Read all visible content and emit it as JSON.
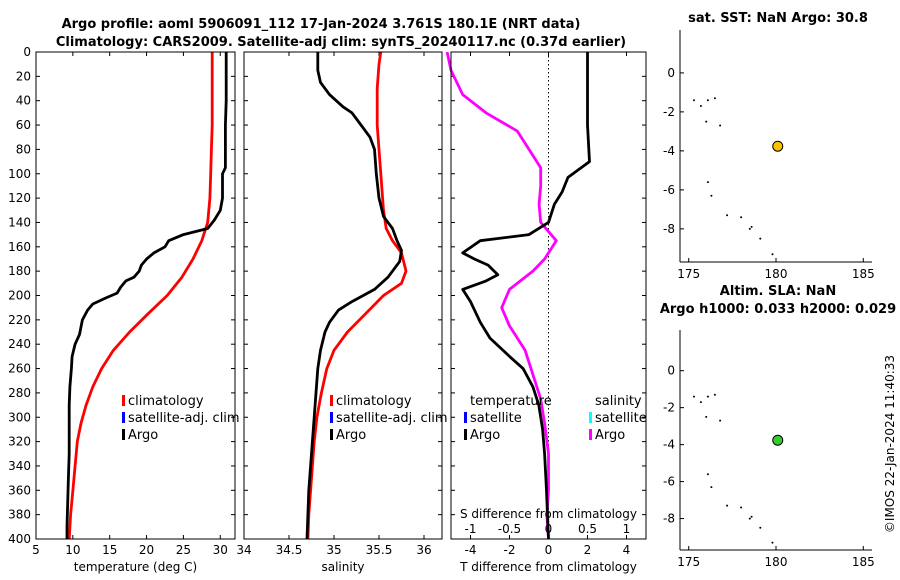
{
  "header": {
    "title_line1": "Argo profile: aoml 5906091_112 17-Jan-2024 3.761S 180.1E (NRT data)",
    "title_line2": "Climatology: CARS2009. Satellite-adj clim: synTS_20240117.nc (0.37d earlier)"
  },
  "footer": {
    "stamp": "©IMOS 22-Jan-2024 11:40:33"
  },
  "colors": {
    "climatology": "#ff0000",
    "satellite": "#0000ff",
    "argo": "#000000",
    "sal_diff": "#ff00ff",
    "sat_cyan": "#00ffff",
    "marker_sst": "#ffc000",
    "marker_sla": "#33cc33"
  },
  "chart_data": [
    {
      "id": "temperature",
      "type": "line",
      "xlabel": "temperature (deg C)",
      "xlim": [
        5,
        32
      ],
      "xticks": [
        5,
        10,
        15,
        20,
        25,
        30
      ],
      "ylim": [
        0,
        400
      ],
      "yticks": [
        0,
        20,
        40,
        60,
        80,
        100,
        120,
        140,
        160,
        180,
        200,
        220,
        240,
        260,
        280,
        300,
        320,
        340,
        360,
        380,
        400
      ],
      "legend": [
        "climatology",
        "satellite-adj. clim",
        "Argo"
      ],
      "series": [
        {
          "name": "climatology",
          "color": "#ff0000",
          "points": [
            [
              28.9,
              0
            ],
            [
              28.9,
              20
            ],
            [
              28.9,
              40
            ],
            [
              28.9,
              60
            ],
            [
              28.8,
              80
            ],
            [
              28.7,
              100
            ],
            [
              28.6,
              120
            ],
            [
              28.3,
              140
            ],
            [
              27.5,
              155
            ],
            [
              26.3,
              170
            ],
            [
              24.8,
              185
            ],
            [
              22.8,
              200
            ],
            [
              20.2,
              215
            ],
            [
              17.7,
              230
            ],
            [
              15.5,
              245
            ],
            [
              13.9,
              260
            ],
            [
              12.7,
              275
            ],
            [
              11.8,
              290
            ],
            [
              11.1,
              305
            ],
            [
              10.6,
              320
            ],
            [
              10.3,
              340
            ],
            [
              10.0,
              360
            ],
            [
              9.7,
              380
            ],
            [
              9.5,
              400
            ]
          ]
        },
        {
          "name": "Argo",
          "color": "#000000",
          "points": [
            [
              30.8,
              0
            ],
            [
              30.8,
              20
            ],
            [
              30.8,
              40
            ],
            [
              30.7,
              60
            ],
            [
              30.7,
              80
            ],
            [
              30.7,
              95
            ],
            [
              30.3,
              100
            ],
            [
              30.3,
              120
            ],
            [
              30.0,
              130
            ],
            [
              29.2,
              138
            ],
            [
              28.3,
              145
            ],
            [
              25.0,
              150
            ],
            [
              23.0,
              155
            ],
            [
              22.5,
              160
            ],
            [
              21.0,
              165
            ],
            [
              20.0,
              170
            ],
            [
              19.3,
              175
            ],
            [
              19.0,
              180
            ],
            [
              18.3,
              185
            ],
            [
              17.2,
              188
            ],
            [
              16.5,
              193
            ],
            [
              16.0,
              198
            ],
            [
              14.5,
              202
            ],
            [
              12.7,
              207
            ],
            [
              12.0,
              212
            ],
            [
              11.3,
              220
            ],
            [
              10.9,
              232
            ],
            [
              10.3,
              240
            ],
            [
              9.9,
              250
            ],
            [
              9.8,
              260
            ],
            [
              9.6,
              275
            ],
            [
              9.5,
              290
            ],
            [
              9.5,
              310
            ],
            [
              9.5,
              330
            ],
            [
              9.4,
              350
            ],
            [
              9.3,
              370
            ],
            [
              9.2,
              390
            ],
            [
              9.2,
              400
            ]
          ]
        }
      ]
    },
    {
      "id": "salinity",
      "type": "line",
      "xlabel": "salinity",
      "xlim": [
        34,
        36.2
      ],
      "xticks": [
        34,
        34.5,
        35,
        35.5,
        36
      ],
      "xtick_labels": [
        "34",
        "34.5",
        "35",
        "35.5",
        "36"
      ],
      "ylim": [
        0,
        400
      ],
      "legend": [
        "climatology",
        "satellite-adj. clim",
        "Argo"
      ],
      "series": [
        {
          "name": "climatology",
          "color": "#ff0000",
          "points": [
            [
              35.52,
              0
            ],
            [
              35.5,
              10
            ],
            [
              35.48,
              30
            ],
            [
              35.48,
              60
            ],
            [
              35.52,
              100
            ],
            [
              35.55,
              130
            ],
            [
              35.58,
              145
            ],
            [
              35.65,
              155
            ],
            [
              35.75,
              165
            ],
            [
              35.8,
              180
            ],
            [
              35.75,
              190
            ],
            [
              35.55,
              200
            ],
            [
              35.35,
              215
            ],
            [
              35.15,
              230
            ],
            [
              35.0,
              245
            ],
            [
              34.92,
              260
            ],
            [
              34.86,
              280
            ],
            [
              34.81,
              300
            ],
            [
              34.78,
              320
            ],
            [
              34.76,
              340
            ],
            [
              34.74,
              360
            ],
            [
              34.72,
              380
            ],
            [
              34.71,
              400
            ]
          ]
        },
        {
          "name": "Argo",
          "color": "#000000",
          "points": [
            [
              34.82,
              0
            ],
            [
              34.82,
              15
            ],
            [
              34.85,
              25
            ],
            [
              34.95,
              35
            ],
            [
              35.1,
              45
            ],
            [
              35.2,
              50
            ],
            [
              35.3,
              60
            ],
            [
              35.4,
              70
            ],
            [
              35.45,
              80
            ],
            [
              35.47,
              100
            ],
            [
              35.5,
              120
            ],
            [
              35.55,
              135
            ],
            [
              35.65,
              145
            ],
            [
              35.7,
              155
            ],
            [
              35.75,
              163
            ],
            [
              35.73,
              172
            ],
            [
              35.6,
              185
            ],
            [
              35.45,
              195
            ],
            [
              35.2,
              205
            ],
            [
              35.05,
              212
            ],
            [
              34.95,
              222
            ],
            [
              34.9,
              230
            ],
            [
              34.85,
              245
            ],
            [
              34.82,
              260
            ],
            [
              34.8,
              280
            ],
            [
              34.78,
              300
            ],
            [
              34.76,
              320
            ],
            [
              34.74,
              340
            ],
            [
              34.72,
              360
            ],
            [
              34.71,
              380
            ],
            [
              34.7,
              400
            ]
          ]
        }
      ]
    },
    {
      "id": "difference",
      "type": "line",
      "xlabel": "T difference from climatology",
      "xlabel_top": "S difference from climatology",
      "xlim": [
        -5,
        5
      ],
      "xticks": [
        -4,
        -2,
        0,
        2,
        4
      ],
      "xtick_labels": [
        "-4",
        "-2",
        "0",
        "2",
        "4"
      ],
      "s_ticks": [
        -1,
        -0.5,
        0,
        0.5,
        1
      ],
      "s_tick_labels": [
        "-1",
        "-0.5",
        "0",
        "0.5",
        "1"
      ],
      "ylim": [
        0,
        400
      ],
      "legend_temperature": [
        "temperature",
        "satellite",
        "Argo"
      ],
      "legend_salinity": [
        "salinity",
        "satellite",
        "Argo"
      ],
      "series": [
        {
          "name": "S difference",
          "color": "#ff00ff",
          "points": [
            [
              -1.3,
              0
            ],
            [
              -1.25,
              15
            ],
            [
              -1.1,
              35
            ],
            [
              -0.8,
              50
            ],
            [
              -0.4,
              65
            ],
            [
              -0.3,
              75
            ],
            [
              -0.2,
              85
            ],
            [
              -0.1,
              95
            ],
            [
              -0.1,
              110
            ],
            [
              -0.12,
              125
            ],
            [
              -0.1,
              140
            ],
            [
              0.1,
              155
            ],
            [
              -0.05,
              170
            ],
            [
              -0.2,
              180
            ],
            [
              -0.5,
              195
            ],
            [
              -0.6,
              210
            ],
            [
              -0.5,
              225
            ],
            [
              -0.3,
              245
            ],
            [
              -0.2,
              265
            ],
            [
              -0.1,
              285
            ],
            [
              -0.05,
              305
            ],
            [
              0.0,
              330
            ],
            [
              0.0,
              360
            ],
            [
              -0.02,
              380
            ],
            [
              0.0,
              400
            ]
          ]
        },
        {
          "name": "T difference",
          "color": "#000000",
          "points": [
            [
              2.0,
              0
            ],
            [
              2.0,
              30
            ],
            [
              2.0,
              60
            ],
            [
              2.1,
              90
            ],
            [
              1.0,
              103
            ],
            [
              0.7,
              115
            ],
            [
              0.3,
              125
            ],
            [
              0.0,
              140
            ],
            [
              -1.0,
              150
            ],
            [
              -3.5,
              155
            ],
            [
              -4.4,
              165
            ],
            [
              -3.8,
              170
            ],
            [
              -3.1,
              175
            ],
            [
              -2.6,
              183
            ],
            [
              -3.2,
              188
            ],
            [
              -4.4,
              195
            ],
            [
              -4.0,
              205
            ],
            [
              -3.5,
              222
            ],
            [
              -3.0,
              235
            ],
            [
              -2.0,
              250
            ],
            [
              -1.3,
              260
            ],
            [
              -0.8,
              275
            ],
            [
              -0.5,
              290
            ],
            [
              -0.3,
              310
            ],
            [
              -0.2,
              330
            ],
            [
              -0.1,
              360
            ],
            [
              0.0,
              400
            ]
          ]
        }
      ]
    },
    {
      "id": "sst_map",
      "type": "scatter",
      "title": "sat. SST: NaN Argo: 30.8",
      "xlim": [
        174.5,
        185.5
      ],
      "ylim": [
        -9.7,
        2.2
      ],
      "xticks": [
        175,
        180,
        185
      ],
      "yticks": [
        0,
        -2,
        -4,
        -6,
        -8
      ],
      "marker": {
        "lon": 180.1,
        "lat": -3.761,
        "color": "#ffc000"
      },
      "coast_points": [
        [
          175.3,
          -1.4
        ],
        [
          175.7,
          -1.7
        ],
        [
          176.1,
          -1.4
        ],
        [
          176.5,
          -1.3
        ],
        [
          176.0,
          -2.5
        ],
        [
          176.8,
          -2.7
        ],
        [
          176.1,
          -5.6
        ],
        [
          176.3,
          -6.3
        ],
        [
          177.2,
          -7.3
        ],
        [
          178.0,
          -7.4
        ],
        [
          178.5,
          -8.0
        ],
        [
          178.6,
          -7.9
        ],
        [
          179.1,
          -8.5
        ],
        [
          179.8,
          -9.3
        ]
      ]
    },
    {
      "id": "sla_map",
      "type": "scatter",
      "title_line1": "Altim. SLA: NaN",
      "title_line2": "Argo h1000: 0.033 h2000: 0.029",
      "xlim": [
        174.5,
        185.5
      ],
      "ylim": [
        -9.7,
        2.2
      ],
      "xticks": [
        175,
        180,
        185
      ],
      "yticks": [
        0,
        -2,
        -4,
        -6,
        -8
      ],
      "marker": {
        "lon": 180.1,
        "lat": -3.761,
        "color": "#33cc33"
      },
      "coast_points": [
        [
          175.3,
          -1.4
        ],
        [
          175.7,
          -1.7
        ],
        [
          176.1,
          -1.4
        ],
        [
          176.5,
          -1.3
        ],
        [
          176.0,
          -2.5
        ],
        [
          176.8,
          -2.7
        ],
        [
          176.1,
          -5.6
        ],
        [
          176.3,
          -6.3
        ],
        [
          177.2,
          -7.3
        ],
        [
          178.0,
          -7.4
        ],
        [
          178.5,
          -8.0
        ],
        [
          178.6,
          -7.9
        ],
        [
          179.1,
          -8.5
        ],
        [
          179.8,
          -9.3
        ]
      ]
    }
  ]
}
